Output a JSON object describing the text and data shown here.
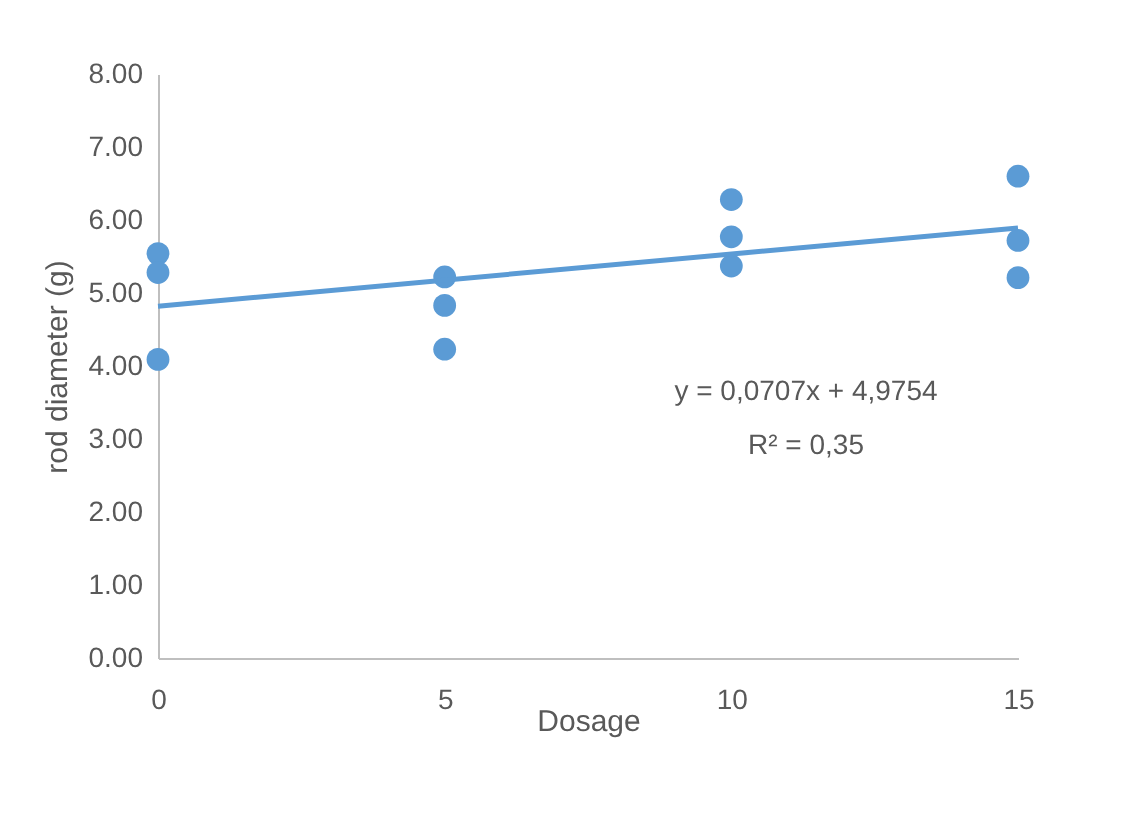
{
  "chart_data": {
    "type": "scatter",
    "xlabel": "Dosage",
    "ylabel": "rod diameter (g)",
    "xlim": [
      0,
      15
    ],
    "xticks": [
      0,
      5,
      10,
      15
    ],
    "ylim": [
      0,
      8
    ],
    "yticks": [
      {
        "value": 0,
        "label": "0.00"
      },
      {
        "value": 1,
        "label": "1.00"
      },
      {
        "value": 2,
        "label": "2.00"
      },
      {
        "value": 3,
        "label": "3.00"
      },
      {
        "value": 4,
        "label": "4.00"
      },
      {
        "value": 5,
        "label": "5.00"
      },
      {
        "value": 6,
        "label": "6.00"
      },
      {
        "value": 7,
        "label": "7.00"
      },
      {
        "value": 8,
        "label": "8.00"
      }
    ],
    "grid": false,
    "series": [
      {
        "color": "#5b9bd5",
        "marker": "circle",
        "x": [
          0,
          0,
          0,
          5,
          5,
          5,
          10,
          10,
          10,
          15,
          15,
          15
        ],
        "values": [
          5.54,
          5.28,
          4.09,
          5.22,
          4.83,
          4.23,
          6.28,
          5.77,
          5.37,
          6.6,
          5.72,
          5.21
        ]
      },
      {
        "type": "line",
        "color": "#5b9bd5",
        "line_style": "solid",
        "x": [
          0,
          15
        ],
        "values": [
          4.82,
          5.89
        ]
      }
    ],
    "annotations": [
      "y = 0,0707x + 4,9754",
      "R² = 0,35"
    ]
  }
}
